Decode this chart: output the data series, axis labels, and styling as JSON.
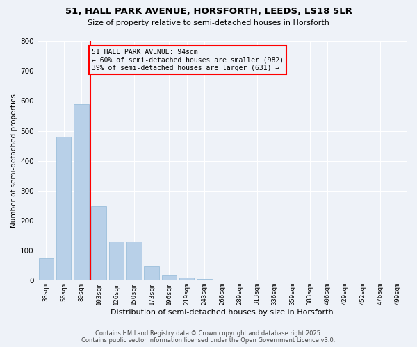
{
  "title_line1": "51, HALL PARK AVENUE, HORSFORTH, LEEDS, LS18 5LR",
  "title_line2": "Size of property relative to semi-detached houses in Horsforth",
  "xlabel": "Distribution of semi-detached houses by size in Horsforth",
  "ylabel": "Number of semi-detached properties",
  "categories": [
    "33sqm",
    "56sqm",
    "80sqm",
    "103sqm",
    "126sqm",
    "150sqm",
    "173sqm",
    "196sqm",
    "219sqm",
    "243sqm",
    "266sqm",
    "289sqm",
    "313sqm",
    "336sqm",
    "359sqm",
    "383sqm",
    "406sqm",
    "429sqm",
    "452sqm",
    "476sqm",
    "499sqm"
  ],
  "values": [
    75,
    480,
    590,
    248,
    130,
    130,
    48,
    20,
    10,
    5,
    2,
    0,
    0,
    0,
    0,
    0,
    0,
    0,
    0,
    0,
    0
  ],
  "bar_color": "#b8d0e8",
  "bar_edge_color": "#90b8d8",
  "vline_color": "red",
  "annotation_title": "51 HALL PARK AVENUE: 94sqm",
  "annotation_line2": "← 60% of semi-detached houses are smaller (982)",
  "annotation_line3": "39% of semi-detached houses are larger (631) →",
  "annotation_box_color": "red",
  "ylim": [
    0,
    800
  ],
  "yticks": [
    0,
    100,
    200,
    300,
    400,
    500,
    600,
    700,
    800
  ],
  "background_color": "#eef2f8",
  "grid_color": "#ffffff",
  "footer_line1": "Contains HM Land Registry data © Crown copyright and database right 2025.",
  "footer_line2": "Contains public sector information licensed under the Open Government Licence v3.0."
}
